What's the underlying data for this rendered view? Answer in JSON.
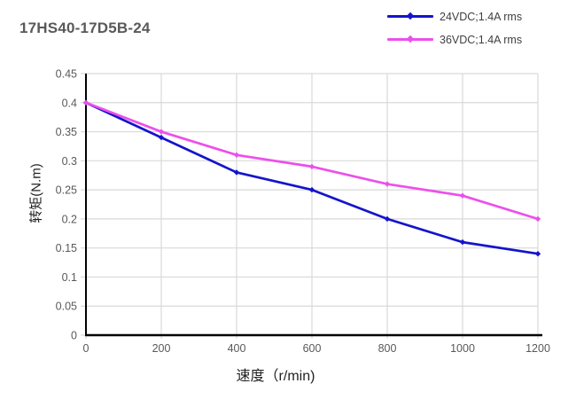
{
  "title": "17HS40-17D5B-24",
  "legend": [
    {
      "label": "24VDC;1.4A rms",
      "color": "#1414cc"
    },
    {
      "label": "36VDC;1.4A rms",
      "color": "#ec4fec"
    }
  ],
  "chart_data": {
    "type": "line",
    "title": "17HS40-17D5B-24",
    "x": [
      0,
      200,
      400,
      600,
      800,
      1000,
      1200
    ],
    "series": [
      {
        "name": "24VDC;1.4A rms",
        "color": "#1414cc",
        "values": [
          0.4,
          0.34,
          0.28,
          0.25,
          0.2,
          0.16,
          0.14
        ]
      },
      {
        "name": "36VDC;1.4A rms",
        "color": "#ec4fec",
        "values": [
          0.4,
          0.35,
          0.31,
          0.29,
          0.26,
          0.24,
          0.2
        ]
      }
    ],
    "xlabel": "速度（r/min)",
    "ylabel": "转矩(N.m)",
    "xlim": [
      0,
      1200
    ],
    "ylim": [
      0,
      0.45
    ],
    "xticks": [
      0,
      200,
      400,
      600,
      800,
      1000,
      1200
    ],
    "yticks": [
      0,
      0.05,
      0.1,
      0.15,
      0.2,
      0.25,
      0.3,
      0.35,
      0.4,
      0.45
    ],
    "grid": true,
    "legend_position": "top-right",
    "marker": "diamond",
    "colors": {
      "grid": "#d9d9d9",
      "axis": "#000000",
      "tick_label": "#595959",
      "chart_title": "#595959",
      "axis_label": "#1f1f1f"
    }
  }
}
